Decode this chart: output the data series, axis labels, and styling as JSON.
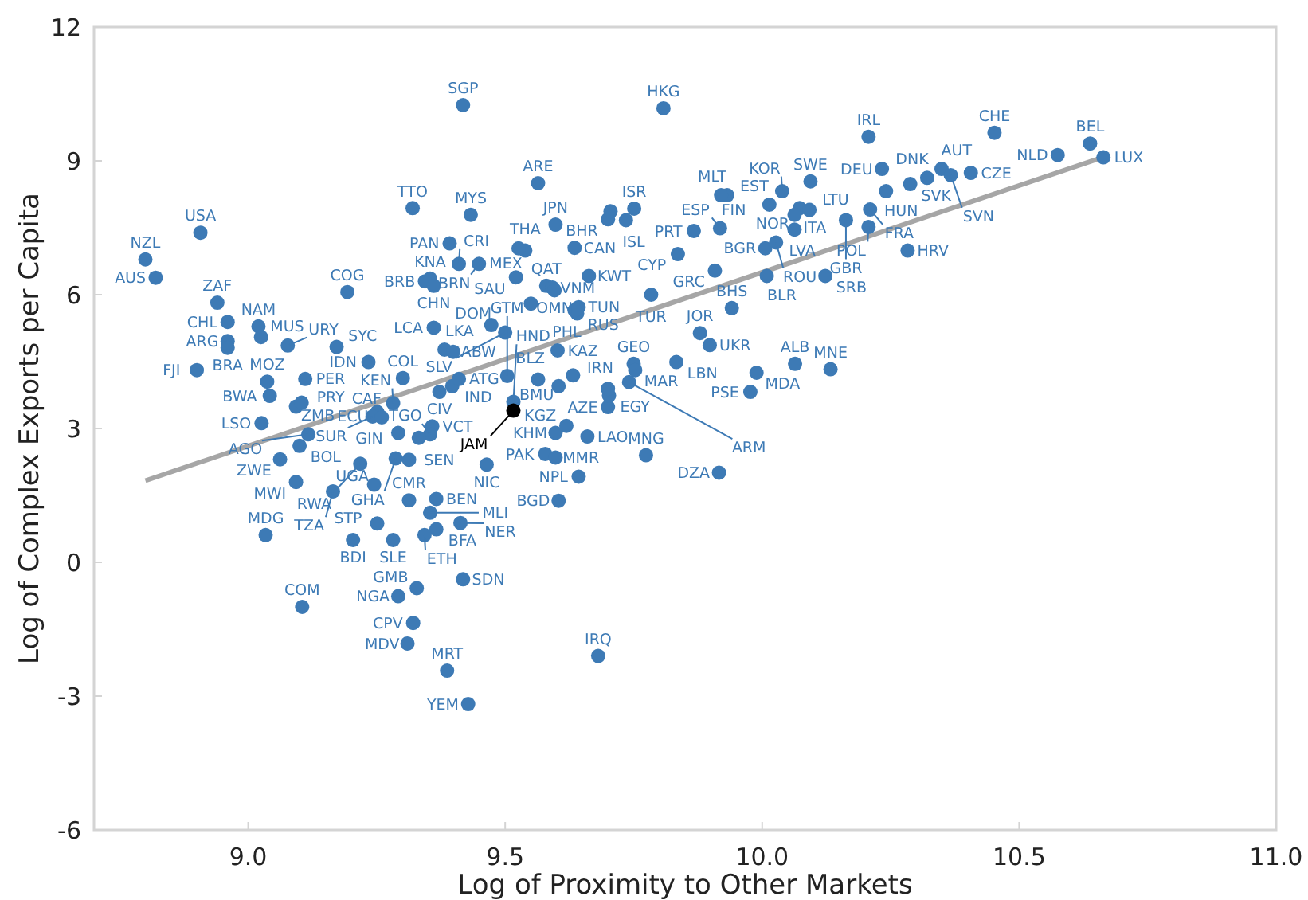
{
  "chart_data": {
    "type": "scatter",
    "xlabel": "Log of Proximity to Other Markets",
    "ylabel": "Log of Complex Exports per Capita",
    "xlim": [
      8.7,
      11
    ],
    "ylim": [
      -6,
      12
    ],
    "xticks": [
      {
        "value": 9,
        "label": "9.0"
      },
      {
        "value": 9.5,
        "label": "9.5"
      },
      {
        "value": 10,
        "label": "10.0"
      },
      {
        "value": 10.5,
        "label": "10.5"
      },
      {
        "value": 11,
        "label": "11.0"
      }
    ],
    "yticks": [
      -6,
      -3,
      0,
      3,
      6,
      9,
      12
    ],
    "grid": false,
    "marker": "circle",
    "series": [
      {
        "type": "scatter",
        "color": "#3d7ab5",
        "x": [
          8.907,
          8.8,
          8.82,
          8.94,
          8.96,
          9.02,
          9.025,
          8.96,
          8.96,
          8.9,
          9.172,
          9.077,
          9.193,
          9.037,
          9.111,
          9.234,
          9.301,
          9.042,
          9.093,
          9.104,
          9.282,
          9.397,
          9.41,
          9.372,
          9.251,
          9.242,
          9.26,
          9.292,
          9.358,
          9.354,
          9.026,
          9.117,
          9.1,
          9.062,
          9.218,
          9.093,
          9.245,
          9.165,
          9.034,
          9.313,
          9.366,
          9.464,
          9.287,
          9.313,
          9.354,
          9.251,
          9.366,
          9.413,
          9.204,
          9.282,
          9.343,
          9.105,
          9.292,
          9.328,
          9.321,
          9.31,
          9.387,
          9.428,
          9.418,
          9.681,
          9.578,
          9.598,
          9.598,
          9.619,
          9.66,
          9.643,
          9.604,
          9.774,
          9.916,
          9.516,
          9.7,
          9.702,
          9.7,
          9.604,
          9.564,
          9.504,
          9.602,
          9.75,
          9.753,
          9.741,
          9.833,
          10.064,
          10.133,
          9.989,
          9.977,
          9.898,
          9.879,
          9.643,
          9.64,
          9.635,
          9.941,
          9.5,
          9.473,
          9.361,
          9.382,
          9.399,
          9.354,
          9.344,
          9.361,
          9.32,
          9.433,
          9.392,
          9.41,
          9.449,
          9.539,
          9.526,
          9.521,
          9.58,
          9.592,
          9.596,
          9.663,
          9.836,
          9.784,
          9.418,
          9.808,
          9.564,
          9.598,
          9.635,
          9.7,
          9.751,
          9.735,
          9.918,
          10.014,
          9.867,
          9.932,
          9.92,
          10.039,
          10.073,
          10.063,
          10.092,
          10.094,
          10.063,
          9.908,
          10.006,
          10.027,
          10.009,
          10.123,
          10.163,
          10.207,
          10.233,
          10.241,
          10.21,
          10.207,
          10.283,
          10.452,
          10.638,
          10.575,
          10.664,
          10.321,
          10.349,
          10.367,
          10.406,
          10.288,
          9.705,
          9.55,
          9.632,
          9.332
        ],
        "values": [
          7.39,
          6.79,
          6.38,
          5.82,
          5.39,
          5.29,
          5.05,
          4.96,
          4.81,
          4.31,
          4.83,
          4.86,
          6.06,
          4.05,
          4.11,
          4.49,
          4.13,
          3.73,
          3.49,
          3.58,
          3.57,
          3.95,
          4.11,
          3.82,
          3.37,
          3.27,
          3.25,
          2.9,
          3.05,
          2.87,
          3.12,
          2.87,
          2.61,
          2.31,
          2.21,
          1.8,
          1.74,
          1.59,
          0.61,
          1.39,
          1.42,
          2.19,
          2.33,
          2.3,
          1.11,
          0.87,
          0.74,
          0.88,
          0.5,
          0.5,
          0.61,
          -1,
          -0.76,
          -0.58,
          -1.36,
          -1.82,
          -2.43,
          -3.18,
          -0.38,
          -2.1,
          2.43,
          2.35,
          2.9,
          3.06,
          2.82,
          1.92,
          1.38,
          2.4,
          2.01,
          3.6,
          3.48,
          3.74,
          3.89,
          3.95,
          4.1,
          4.18,
          4.75,
          4.45,
          4.31,
          4.04,
          4.49,
          4.45,
          4.33,
          4.25,
          3.82,
          4.87,
          5.14,
          5.72,
          5.58,
          5.65,
          5.7,
          5.15,
          5.32,
          5.26,
          4.77,
          4.72,
          6.36,
          6.3,
          6.2,
          7.94,
          7.79,
          7.15,
          6.69,
          6.69,
          6.99,
          7.04,
          6.39,
          6.2,
          6.16,
          6.1,
          6.42,
          6.91,
          6,
          10.25,
          10.18,
          8.5,
          7.57,
          7.05,
          7.69,
          7.93,
          7.67,
          7.49,
          8.02,
          7.43,
          8.23,
          8.23,
          8.32,
          7.94,
          7.79,
          7.9,
          8.54,
          7.46,
          6.54,
          7.04,
          7.17,
          6.42,
          6.42,
          7.67,
          9.54,
          8.82,
          8.32,
          7.91,
          7.52,
          6.99,
          9.63,
          9.39,
          9.13,
          9.08,
          8.62,
          8.82,
          8.68,
          8.73,
          8.48,
          7.87,
          5.8,
          4.19,
          2.79
        ]
      },
      {
        "type": "scatter",
        "color": "#000000",
        "x": [
          9.516
        ],
        "values": [
          3.4
        ]
      },
      {
        "type": "line",
        "color": "#a6a6a6",
        "marker": "none",
        "x": [
          8.8,
          10.66
        ],
        "values": [
          1.83,
          9.07
        ]
      }
    ],
    "annotations": [
      {
        "text": "USA",
        "x": 8.907,
        "y": 7.39
      },
      {
        "text": "NZL",
        "x": 8.8,
        "y": 6.79
      },
      {
        "text": "AUS",
        "x": 8.82,
        "y": 6.38
      },
      {
        "text": "ZAF",
        "x": 8.94,
        "y": 5.82
      },
      {
        "text": "CHL",
        "x": 8.96,
        "y": 5.39
      },
      {
        "text": "NAM",
        "x": 9.02,
        "y": 5.29
      },
      {
        "text": "MUS",
        "x": 9.025,
        "y": 5.05
      },
      {
        "text": "ARG",
        "x": 8.96,
        "y": 4.96
      },
      {
        "text": "BRA",
        "x": 8.96,
        "y": 4.81
      },
      {
        "text": "FJI",
        "x": 8.9,
        "y": 4.31
      },
      {
        "text": "SYC",
        "x": 9.172,
        "y": 4.83
      },
      {
        "text": "URY",
        "x": 9.077,
        "y": 4.86
      },
      {
        "text": "COG",
        "x": 9.193,
        "y": 6.06
      },
      {
        "text": "MOZ",
        "x": 9.037,
        "y": 4.05
      },
      {
        "text": "PER",
        "x": 9.111,
        "y": 4.11
      },
      {
        "text": "IDN",
        "x": 9.234,
        "y": 4.49
      },
      {
        "text": "COL",
        "x": 9.301,
        "y": 4.13
      },
      {
        "text": "BWA",
        "x": 9.042,
        "y": 3.73
      },
      {
        "text": "ZMB",
        "x": 9.093,
        "y": 3.49
      },
      {
        "text": "PRY",
        "x": 9.104,
        "y": 3.58
      },
      {
        "text": "KEN",
        "x": 9.282,
        "y": 3.57
      },
      {
        "text": "IND",
        "x": 9.397,
        "y": 3.95
      },
      {
        "text": "ATG",
        "x": 9.41,
        "y": 4.11
      },
      {
        "text": "CIV",
        "x": 9.372,
        "y": 3.82
      },
      {
        "text": "ECU",
        "x": 9.251,
        "y": 3.37
      },
      {
        "text": "SUR",
        "x": 9.242,
        "y": 3.27
      },
      {
        "text": "CAF",
        "x": 9.26,
        "y": 3.25
      },
      {
        "text": "GIN",
        "x": 9.292,
        "y": 2.9
      },
      {
        "text": "VCT",
        "x": 9.358,
        "y": 3.05
      },
      {
        "text": "TGO",
        "x": 9.354,
        "y": 2.87
      },
      {
        "text": "LSO",
        "x": 9.026,
        "y": 3.12
      },
      {
        "text": "AGO",
        "x": 9.117,
        "y": 2.87
      },
      {
        "text": "BOL",
        "x": 9.1,
        "y": 2.61
      },
      {
        "text": "ZWE",
        "x": 9.062,
        "y": 2.31
      },
      {
        "text": "RWA",
        "x": 9.218,
        "y": 2.21
      },
      {
        "text": "MWI",
        "x": 9.093,
        "y": 1.8
      },
      {
        "text": "UGA",
        "x": 9.245,
        "y": 1.74
      },
      {
        "text": "TZA",
        "x": 9.165,
        "y": 1.59
      },
      {
        "text": "MDG",
        "x": 9.034,
        "y": 0.61
      },
      {
        "text": "CMR",
        "x": 9.313,
        "y": 1.39
      },
      {
        "text": "BEN",
        "x": 9.366,
        "y": 1.42
      },
      {
        "text": "NIC",
        "x": 9.464,
        "y": 2.19
      },
      {
        "text": "GHA",
        "x": 9.287,
        "y": 2.33
      },
      {
        "text": "SEN",
        "x": 9.313,
        "y": 2.3
      },
      {
        "text": "MLI",
        "x": 9.354,
        "y": 1.11
      },
      {
        "text": "STP",
        "x": 9.251,
        "y": 0.87
      },
      {
        "text": "BFA",
        "x": 9.366,
        "y": 0.74
      },
      {
        "text": "NER",
        "x": 9.413,
        "y": 0.88
      },
      {
        "text": "BDI",
        "x": 9.204,
        "y": 0.5
      },
      {
        "text": "SLE",
        "x": 9.282,
        "y": 0.5
      },
      {
        "text": "ETH",
        "x": 9.343,
        "y": 0.61
      },
      {
        "text": "COM",
        "x": 9.105,
        "y": -1
      },
      {
        "text": "NGA",
        "x": 9.292,
        "y": -0.76
      },
      {
        "text": "GMB",
        "x": 9.328,
        "y": -0.58
      },
      {
        "text": "CPV",
        "x": 9.321,
        "y": -1.36
      },
      {
        "text": "MDV",
        "x": 9.31,
        "y": -1.82
      },
      {
        "text": "MRT",
        "x": 9.387,
        "y": -2.43
      },
      {
        "text": "YEM",
        "x": 9.428,
        "y": -3.18
      },
      {
        "text": "SDN",
        "x": 9.418,
        "y": -0.38
      },
      {
        "text": "IRQ",
        "x": 9.681,
        "y": -2.1
      },
      {
        "text": "PAK",
        "x": 9.578,
        "y": 2.43
      },
      {
        "text": "MMR",
        "x": 9.598,
        "y": 2.35
      },
      {
        "text": "KHM",
        "x": 9.598,
        "y": 2.9
      },
      {
        "text": "KGZ",
        "x": 9.619,
        "y": 3.06
      },
      {
        "text": "LAO",
        "x": 9.66,
        "y": 2.82
      },
      {
        "text": "NPL",
        "x": 9.643,
        "y": 1.92
      },
      {
        "text": "BGD",
        "x": 9.604,
        "y": 1.38
      },
      {
        "text": "MNG",
        "x": 9.774,
        "y": 2.4
      },
      {
        "text": "DZA",
        "x": 9.916,
        "y": 2.01
      },
      {
        "text": "HND",
        "x": 9.516,
        "y": 3.6
      },
      {
        "text": "JAM",
        "x": 9.516,
        "y": 3.4
      },
      {
        "text": "AZE",
        "x": 9.7,
        "y": 3.48
      },
      {
        "text": "EGY",
        "x": 9.702,
        "y": 3.74
      },
      {
        "text": "IRN",
        "x": 9.7,
        "y": 3.89
      },
      {
        "text": "BMU",
        "x": 9.604,
        "y": 3.95
      },
      {
        "text": "BLZ",
        "x": 9.564,
        "y": 4.1
      },
      {
        "text": "GTM",
        "x": 9.504,
        "y": 4.18
      },
      {
        "text": "KAZ",
        "x": 9.602,
        "y": 4.75
      },
      {
        "text": "GEO",
        "x": 9.75,
        "y": 4.45
      },
      {
        "text": "MAR",
        "x": 9.753,
        "y": 4.31
      },
      {
        "text": "ARM",
        "x": 9.741,
        "y": 4.04
      },
      {
        "text": "LBN",
        "x": 9.833,
        "y": 4.49
      },
      {
        "text": "ALB",
        "x": 10.064,
        "y": 4.45
      },
      {
        "text": "MNE",
        "x": 10.133,
        "y": 4.33
      },
      {
        "text": "MDA",
        "x": 9.989,
        "y": 4.25
      },
      {
        "text": "PSE",
        "x": 9.977,
        "y": 3.82
      },
      {
        "text": "UKR",
        "x": 9.898,
        "y": 4.87
      },
      {
        "text": "JOR",
        "x": 9.879,
        "y": 5.14
      },
      {
        "text": "TUN",
        "x": 9.643,
        "y": 5.72
      },
      {
        "text": "RUS",
        "x": 9.64,
        "y": 5.58
      },
      {
        "text": "PHL",
        "x": 9.635,
        "y": 5.65
      },
      {
        "text": "BHS",
        "x": 9.941,
        "y": 5.7
      },
      {
        "text": "SLV",
        "x": 9.5,
        "y": 5.15
      },
      {
        "text": "DOM",
        "x": 9.473,
        "y": 5.32
      },
      {
        "text": "LCA",
        "x": 9.361,
        "y": 5.26
      },
      {
        "text": "LKA",
        "x": 9.382,
        "y": 4.77
      },
      {
        "text": "ABW",
        "x": 9.399,
        "y": 4.72
      },
      {
        "text": "KNA",
        "x": 9.354,
        "y": 6.36
      },
      {
        "text": "BRB",
        "x": 9.344,
        "y": 6.3
      },
      {
        "text": "CHN",
        "x": 9.361,
        "y": 6.2
      },
      {
        "text": "TTO",
        "x": 9.32,
        "y": 7.94
      },
      {
        "text": "MYS",
        "x": 9.433,
        "y": 7.79
      },
      {
        "text": "PAN",
        "x": 9.392,
        "y": 7.15
      },
      {
        "text": "CRI",
        "x": 9.41,
        "y": 6.69
      },
      {
        "text": "BRN",
        "x": 9.449,
        "y": 6.69
      },
      {
        "text": "THA",
        "x": 9.539,
        "y": 6.99
      },
      {
        "text": "MEX",
        "x": 9.526,
        "y": 7.04
      },
      {
        "text": "SAU",
        "x": 9.521,
        "y": 6.39
      },
      {
        "text": "QAT",
        "x": 9.58,
        "y": 6.2
      },
      {
        "text": "VNM",
        "x": 9.592,
        "y": 6.16
      },
      {
        "text": "OMN",
        "x": 9.596,
        "y": 6.1
      },
      {
        "text": "KWT",
        "x": 9.663,
        "y": 6.42
      },
      {
        "text": "CYP",
        "x": 9.836,
        "y": 6.91
      },
      {
        "text": "TUR",
        "x": 9.784,
        "y": 6
      },
      {
        "text": "SGP",
        "x": 9.418,
        "y": 10.25
      },
      {
        "text": "HKG",
        "x": 9.808,
        "y": 10.18
      },
      {
        "text": "ARE",
        "x": 9.564,
        "y": 8.5
      },
      {
        "text": "JPN",
        "x": 9.598,
        "y": 7.57
      },
      {
        "text": "CAN",
        "x": 9.635,
        "y": 7.05
      },
      {
        "text": "BHR",
        "x": 9.7,
        "y": 7.69
      },
      {
        "text": "ISR",
        "x": 9.751,
        "y": 7.93
      },
      {
        "text": "ISL",
        "x": 9.735,
        "y": 7.67
      },
      {
        "text": "ESP",
        "x": 9.918,
        "y": 7.49
      },
      {
        "text": "EST",
        "x": 10.014,
        "y": 8.02
      },
      {
        "text": "PRT",
        "x": 9.867,
        "y": 7.43
      },
      {
        "text": "MLT",
        "x": 9.932,
        "y": 8.23
      },
      {
        "text": "FIN",
        "x": 9.92,
        "y": 8.23
      },
      {
        "text": "KOR",
        "x": 10.039,
        "y": 8.32
      },
      {
        "text": "ITA",
        "x": 10.073,
        "y": 7.94
      },
      {
        "text": "NOR",
        "x": 10.063,
        "y": 7.79
      },
      {
        "text": "LTU",
        "x": 10.092,
        "y": 7.9
      },
      {
        "text": "SWE",
        "x": 10.094,
        "y": 8.54
      },
      {
        "text": "LVA",
        "x": 10.063,
        "y": 7.46
      },
      {
        "text": "GRC",
        "x": 9.908,
        "y": 6.54
      },
      {
        "text": "BGR",
        "x": 10.006,
        "y": 7.04
      },
      {
        "text": "ROU",
        "x": 10.027,
        "y": 7.17
      },
      {
        "text": "BLR",
        "x": 10.009,
        "y": 6.42
      },
      {
        "text": "SRB",
        "x": 10.123,
        "y": 6.42
      },
      {
        "text": "GBR",
        "x": 10.163,
        "y": 7.67
      },
      {
        "text": "IRL",
        "x": 10.207,
        "y": 9.54
      },
      {
        "text": "DEU",
        "x": 10.233,
        "y": 8.82
      },
      {
        "text": "HUN",
        "x": 10.241,
        "y": 8.32
      },
      {
        "text": "FRA",
        "x": 10.21,
        "y": 7.91
      },
      {
        "text": "POL",
        "x": 10.207,
        "y": 7.52
      },
      {
        "text": "HRV",
        "x": 10.283,
        "y": 6.99
      },
      {
        "text": "CHE",
        "x": 10.452,
        "y": 9.63
      },
      {
        "text": "BEL",
        "x": 10.638,
        "y": 9.39
      },
      {
        "text": "NLD",
        "x": 10.575,
        "y": 9.13
      },
      {
        "text": "LUX",
        "x": 10.664,
        "y": 9.08
      },
      {
        "text": "DNK",
        "x": 10.321,
        "y": 8.62
      },
      {
        "text": "AUT",
        "x": 10.349,
        "y": 8.82
      },
      {
        "text": "SVN",
        "x": 10.367,
        "y": 8.68
      },
      {
        "text": "CZE",
        "x": 10.406,
        "y": 8.73
      },
      {
        "text": "SVK",
        "x": 10.288,
        "y": 8.48
      }
    ]
  }
}
